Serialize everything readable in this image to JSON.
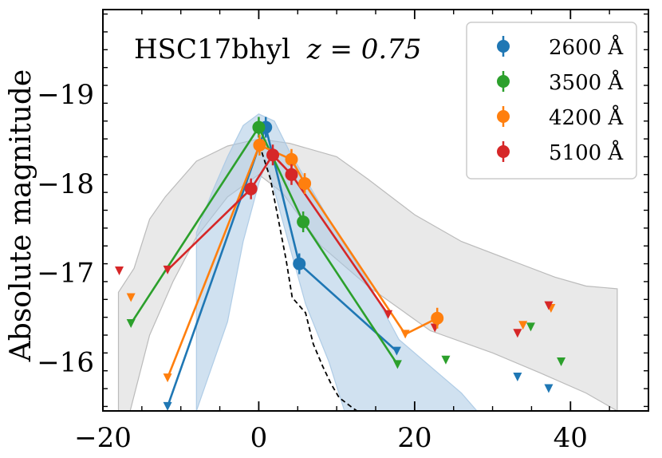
{
  "chart_data": {
    "type": "scatter",
    "annotation": {
      "name": "HSC17bhyl",
      "redshift_text": "z = 0.75"
    },
    "xlabel": "",
    "ylabel": "Absolute magnitude",
    "xlim": [
      -20,
      50
    ],
    "ylim": [
      -15.45,
      -19.95
    ],
    "y_inverted": true,
    "x_ticks": [
      -20,
      0,
      20,
      40
    ],
    "x_tick_labels": [
      "−20",
      "0",
      "20",
      "40"
    ],
    "y_ticks": [
      -16,
      -17,
      -18,
      -19
    ],
    "y_tick_labels": [
      "−16",
      "−17",
      "−18",
      "−19"
    ],
    "legend_position": "upper right",
    "series": [
      {
        "name": "2600 Å",
        "color": "#1f77b4",
        "points": [
          [
            0.9,
            -18.63
          ],
          [
            5.2,
            -17.1
          ]
        ],
        "line": [
          [
            -11.7,
            -15.5
          ],
          [
            0.9,
            -18.63
          ],
          [
            5.2,
            -17.1
          ],
          [
            17.7,
            -16.12
          ]
        ],
        "upper_limits": [
          [
            -11.7,
            -15.5
          ],
          [
            17.7,
            -16.12
          ],
          [
            33.2,
            -15.83
          ],
          [
            37.2,
            -15.7
          ]
        ]
      },
      {
        "name": "3500 Å",
        "color": "#2ca02c",
        "points": [
          [
            0.0,
            -18.63
          ],
          [
            5.7,
            -17.57
          ]
        ],
        "line": [
          [
            -16.4,
            -16.43
          ],
          [
            0.0,
            -18.63
          ],
          [
            5.7,
            -17.57
          ],
          [
            17.8,
            -15.97
          ]
        ],
        "upper_limits": [
          [
            -16.4,
            -16.43
          ],
          [
            17.8,
            -15.97
          ],
          [
            24.0,
            -16.02
          ],
          [
            34.9,
            -16.39
          ],
          [
            38.8,
            -16.0
          ]
        ]
      },
      {
        "name": "4200 Å",
        "color": "#ff7f0e",
        "points": [
          [
            0.1,
            -18.43
          ],
          [
            4.2,
            -18.27
          ],
          [
            5.9,
            -18.0
          ],
          [
            22.9,
            -16.49
          ]
        ],
        "line": [
          [
            -11.7,
            -15.82
          ],
          [
            0.1,
            -18.43
          ],
          [
            4.2,
            -18.27
          ],
          [
            5.9,
            -18.0
          ],
          [
            18.8,
            -16.31
          ],
          [
            22.9,
            -16.49
          ]
        ],
        "upper_limits": [
          [
            -16.4,
            -16.72
          ],
          [
            -11.7,
            -15.82
          ],
          [
            18.8,
            -16.31
          ],
          [
            33.9,
            -16.41
          ],
          [
            37.5,
            -16.6
          ]
        ]
      },
      {
        "name": "5100 Å",
        "color": "#d62728",
        "points": [
          [
            -1.0,
            -17.94
          ],
          [
            1.8,
            -18.32
          ],
          [
            4.2,
            -18.1
          ]
        ],
        "line": [
          [
            -11.7,
            -17.03
          ],
          [
            -1.0,
            -17.94
          ],
          [
            1.8,
            -18.32
          ],
          [
            4.2,
            -18.1
          ],
          [
            16.6,
            -16.53
          ]
        ],
        "upper_limits": [
          [
            -17.9,
            -17.02
          ],
          [
            -11.7,
            -17.03
          ],
          [
            16.6,
            -16.53
          ],
          [
            22.6,
            -16.38
          ],
          [
            33.2,
            -16.32
          ],
          [
            37.2,
            -16.63
          ]
        ]
      }
    ],
    "shaded_regions": [
      {
        "color": "#b5b5b5",
        "opacity": 0.3,
        "upper": [
          [
            -18,
            -16.78
          ],
          [
            -16,
            -17.05
          ],
          [
            -14,
            -17.6
          ],
          [
            -12,
            -17.85
          ],
          [
            -8,
            -18.25
          ],
          [
            -4,
            -18.42
          ],
          [
            0,
            -18.5
          ],
          [
            4,
            -18.45
          ],
          [
            10,
            -18.3
          ],
          [
            14,
            -18.05
          ],
          [
            20,
            -17.65
          ],
          [
            26,
            -17.35
          ],
          [
            32,
            -17.15
          ],
          [
            38,
            -16.95
          ],
          [
            42,
            -16.85
          ],
          [
            46,
            -16.82
          ]
        ],
        "lower": [
          [
            -18,
            -15.45
          ],
          [
            -16.5,
            -15.45
          ],
          [
            -14,
            -16.3
          ],
          [
            -11,
            -16.9
          ],
          [
            -8,
            -17.4
          ],
          [
            -4,
            -17.85
          ],
          [
            0,
            -18.1
          ],
          [
            3,
            -17.9
          ],
          [
            8,
            -17.3
          ],
          [
            14,
            -16.85
          ],
          [
            22,
            -16.35
          ],
          [
            30,
            -16.1
          ],
          [
            36,
            -15.88
          ],
          [
            42,
            -15.65
          ],
          [
            46,
            -15.45
          ]
        ]
      },
      {
        "color": "#aac9e4",
        "opacity": 0.55,
        "upper": [
          [
            -8,
            -17.45
          ],
          [
            -6,
            -17.9
          ],
          [
            -4,
            -18.3
          ],
          [
            -2,
            -18.65
          ],
          [
            0,
            -18.78
          ],
          [
            2,
            -18.7
          ],
          [
            4,
            -18.35
          ],
          [
            7,
            -17.9
          ],
          [
            10,
            -17.45
          ],
          [
            14,
            -16.9
          ],
          [
            18,
            -16.25
          ],
          [
            22,
            -15.95
          ],
          [
            26,
            -15.65
          ],
          [
            28,
            -15.45
          ]
        ],
        "lower": [
          [
            -8,
            -15.45
          ],
          [
            -4,
            -16.45
          ],
          [
            -2,
            -17.35
          ],
          [
            0,
            -18.0
          ],
          [
            1,
            -18.25
          ],
          [
            3,
            -17.6
          ],
          [
            6,
            -16.65
          ],
          [
            9,
            -16.0
          ],
          [
            11,
            -15.45
          ]
        ]
      }
    ],
    "template_dashed": {
      "color": "#000000",
      "points": [
        [
          0.4,
          -18.35
        ],
        [
          1.5,
          -18.05
        ],
        [
          2.5,
          -17.6
        ],
        [
          3.5,
          -17.15
        ],
        [
          4.3,
          -16.72
        ],
        [
          6.0,
          -16.55
        ],
        [
          7.0,
          -16.2
        ],
        [
          8.2,
          -15.95
        ],
        [
          9.3,
          -15.75
        ],
        [
          10.3,
          -15.6
        ],
        [
          11.8,
          -15.5
        ],
        [
          12.6,
          -15.45
        ]
      ]
    }
  }
}
